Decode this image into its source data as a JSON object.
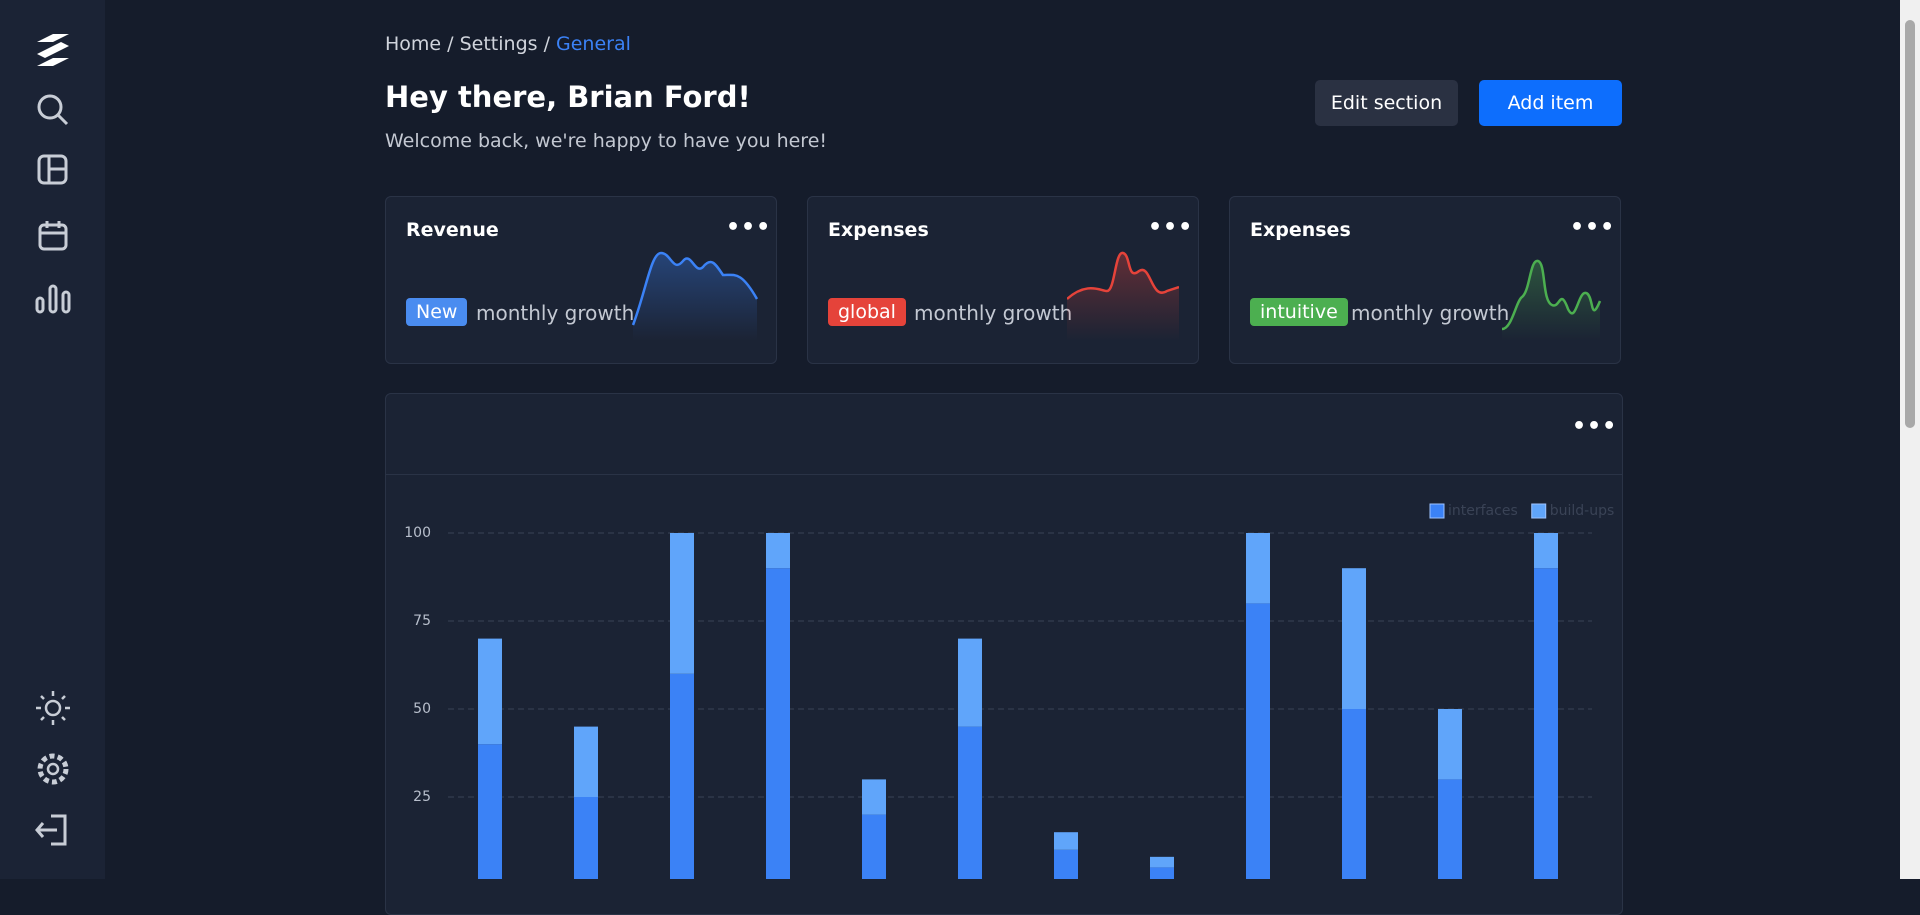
{
  "breadcrumb": [
    "Home",
    "Settings",
    "General"
  ],
  "header": {
    "title": "Hey there, Brian Ford!",
    "subtitle": "Welcome back, we're happy to have you here!"
  },
  "buttons": [
    "Edit section",
    "Add item"
  ],
  "cards": [
    {
      "title": "Revenue",
      "badge": "New",
      "text": "monthly growth"
    },
    {
      "title": "Expenses",
      "badge": "global",
      "text": "monthly growth"
    },
    {
      "title": "Expenses",
      "badge": "intuitive",
      "text": "monthly growth"
    }
  ],
  "chart_data": {
    "type": "stacked-bar",
    "categories": [
      null,
      null,
      null,
      null,
      null,
      null,
      null,
      null,
      null,
      null,
      null,
      null
    ],
    "series": [
      {
        "name": "interfaces",
        "color": "#3b82f6",
        "values": [
          40,
          25,
          60,
          90,
          20,
          45,
          10,
          5,
          80,
          50,
          30,
          90
        ]
      },
      {
        "name": "build-ups",
        "color": "#60a5fa",
        "values": [
          30,
          20,
          40,
          10,
          10,
          25,
          5,
          3,
          20,
          40,
          20,
          10
        ]
      }
    ],
    "ylim": [
      0,
      100
    ],
    "yticks": [
      25,
      50,
      75,
      100
    ],
    "grid": true,
    "legend": "top-right"
  }
}
